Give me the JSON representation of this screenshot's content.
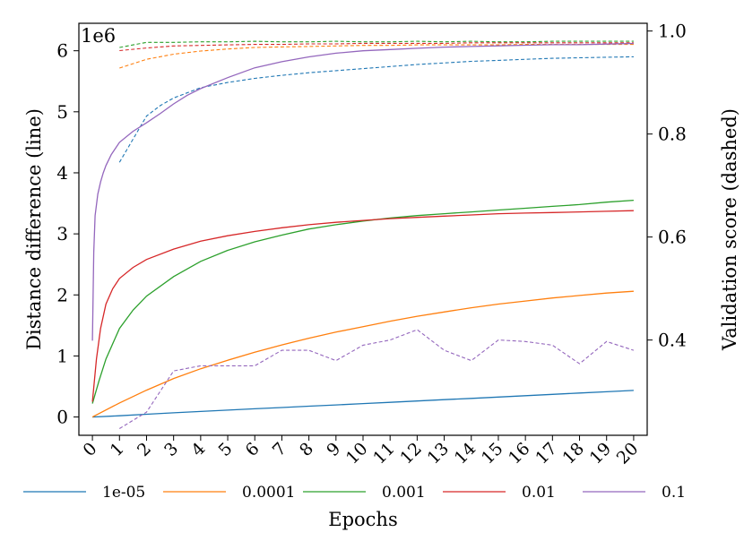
{
  "chart_data": {
    "type": "line",
    "xlabel": "Epochs",
    "ylabel_left": "Distance difference (line)",
    "ylabel_right": "Validation score (dashed)",
    "left_offset_text": "1e6",
    "xlim": [
      -0.5,
      20.5
    ],
    "ylim_left": [
      -0.3,
      6.45
    ],
    "ylim_right": [
      0.215,
      1.015
    ],
    "x_ticks": [
      0,
      1,
      2,
      3,
      4,
      5,
      6,
      7,
      8,
      9,
      10,
      11,
      12,
      13,
      14,
      15,
      16,
      17,
      18,
      19,
      20
    ],
    "x_tick_labels": [
      "0",
      "1",
      "2",
      "3",
      "4",
      "5",
      "6",
      "7",
      "8",
      "9",
      "10",
      "11",
      "12",
      "13",
      "14",
      "15",
      "16",
      "17",
      "18",
      "19",
      "20"
    ],
    "y_left_ticks": [
      0,
      1,
      2,
      3,
      4,
      5,
      6
    ],
    "y_left_tick_labels": [
      "0",
      "1",
      "2",
      "3",
      "4",
      "5",
      "6"
    ],
    "y_right_ticks": [
      0.4,
      0.6,
      0.8,
      1.0
    ],
    "y_right_tick_labels": [
      "0.4",
      "0.6",
      "0.8",
      "1.0"
    ],
    "legend_position": "bottom",
    "series": [
      {
        "name": "1e-05",
        "color": "#1f77b4",
        "distance_x": [
          0,
          1,
          2,
          3,
          4,
          5,
          6,
          7,
          8,
          9,
          10,
          11,
          12,
          13,
          14,
          15,
          16,
          17,
          18,
          19,
          20
        ],
        "distance": [
          0.0,
          0.02,
          0.045,
          0.068,
          0.09,
          0.112,
          0.134,
          0.155,
          0.177,
          0.198,
          0.22,
          0.24,
          0.262,
          0.284,
          0.305,
          0.327,
          0.348,
          0.37,
          0.392,
          0.413,
          0.435
        ],
        "validation_x": [
          1,
          1.5,
          2,
          2.5,
          3,
          4,
          5,
          6,
          7,
          8,
          9,
          10,
          11,
          12,
          13,
          14,
          15,
          16,
          17,
          18,
          19,
          20
        ],
        "validation": [
          0.745,
          0.79,
          0.835,
          0.855,
          0.87,
          0.89,
          0.9,
          0.908,
          0.914,
          0.919,
          0.923,
          0.927,
          0.931,
          0.935,
          0.938,
          0.941,
          0.943,
          0.945,
          0.947,
          0.948,
          0.949,
          0.95
        ]
      },
      {
        "name": "0.0001",
        "color": "#ff7f0e",
        "distance_x": [
          0,
          1,
          2,
          3,
          4,
          5,
          6,
          7,
          8,
          9,
          10,
          11,
          12,
          13,
          14,
          15,
          16,
          17,
          18,
          19,
          20
        ],
        "distance": [
          0.0,
          0.23,
          0.44,
          0.63,
          0.79,
          0.93,
          1.06,
          1.18,
          1.29,
          1.39,
          1.48,
          1.57,
          1.65,
          1.72,
          1.79,
          1.85,
          1.9,
          1.95,
          1.99,
          2.03,
          2.06
        ],
        "validation_x": [
          1,
          2,
          3,
          4,
          5,
          6,
          7,
          8,
          9,
          10,
          11,
          12,
          13,
          14,
          15,
          16,
          17,
          18,
          19,
          20
        ],
        "validation": [
          0.928,
          0.945,
          0.955,
          0.961,
          0.965,
          0.968,
          0.969,
          0.97,
          0.971,
          0.972,
          0.972,
          0.973,
          0.973,
          0.973,
          0.973,
          0.974,
          0.974,
          0.974,
          0.974,
          0.974
        ]
      },
      {
        "name": "0.001",
        "color": "#2ca02c",
        "distance_x": [
          0,
          0.25,
          0.5,
          1,
          1.5,
          2,
          3,
          4,
          5,
          6,
          7,
          8,
          9,
          10,
          11,
          12,
          13,
          14,
          15,
          16,
          17,
          18,
          19,
          20
        ],
        "distance": [
          0.22,
          0.6,
          0.95,
          1.45,
          1.75,
          1.98,
          2.3,
          2.55,
          2.73,
          2.87,
          2.98,
          3.08,
          3.15,
          3.21,
          3.26,
          3.3,
          3.33,
          3.36,
          3.39,
          3.42,
          3.45,
          3.48,
          3.52,
          3.55
        ],
        "validation_x": [
          1,
          2,
          3,
          4,
          5,
          6,
          7,
          8,
          9,
          10,
          11,
          12,
          13,
          14,
          15,
          16,
          17,
          18,
          19,
          20
        ],
        "validation": [
          0.968,
          0.978,
          0.978,
          0.979,
          0.979,
          0.98,
          0.979,
          0.979,
          0.98,
          0.979,
          0.979,
          0.98,
          0.979,
          0.98,
          0.979,
          0.979,
          0.98,
          0.98,
          0.98,
          0.98
        ]
      },
      {
        "name": "0.01",
        "color": "#d62728",
        "distance_x": [
          0,
          0.15,
          0.3,
          0.5,
          0.75,
          1,
          1.5,
          2,
          3,
          4,
          5,
          6,
          7,
          8,
          9,
          10,
          11,
          12,
          13,
          14,
          15,
          16,
          17,
          18,
          19,
          20
        ],
        "distance": [
          0.25,
          0.95,
          1.45,
          1.85,
          2.1,
          2.27,
          2.45,
          2.58,
          2.75,
          2.88,
          2.97,
          3.04,
          3.1,
          3.15,
          3.19,
          3.22,
          3.25,
          3.27,
          3.29,
          3.31,
          3.33,
          3.34,
          3.35,
          3.36,
          3.37,
          3.38
        ],
        "validation_x": [
          1,
          2,
          3,
          4,
          5,
          6,
          7,
          8,
          9,
          10,
          11,
          12,
          13,
          14,
          15,
          16,
          17,
          18,
          19,
          20
        ],
        "validation": [
          0.962,
          0.967,
          0.971,
          0.972,
          0.973,
          0.974,
          0.974,
          0.975,
          0.975,
          0.976,
          0.976,
          0.976,
          0.976,
          0.977,
          0.977,
          0.977,
          0.977,
          0.977,
          0.977,
          0.977
        ]
      },
      {
        "name": "0.1",
        "color": "#9467bd",
        "distance_x": [
          0,
          0.05,
          0.1,
          0.2,
          0.3,
          0.4,
          0.5,
          0.7,
          1,
          1.5,
          2,
          2.5,
          3,
          3.5,
          4,
          5,
          6,
          7,
          8,
          9,
          10,
          11,
          12,
          13,
          14,
          15,
          16,
          17,
          18,
          19,
          20
        ],
        "distance": [
          1.25,
          2.7,
          3.3,
          3.65,
          3.85,
          4.0,
          4.12,
          4.3,
          4.5,
          4.68,
          4.82,
          4.97,
          5.13,
          5.27,
          5.38,
          5.56,
          5.72,
          5.82,
          5.9,
          5.96,
          6.0,
          6.02,
          6.04,
          6.06,
          6.07,
          6.08,
          6.09,
          6.1,
          6.1,
          6.11,
          6.12
        ],
        "validation_x": [
          1,
          2,
          3,
          4,
          5,
          6,
          7,
          8,
          9,
          10,
          11,
          12,
          13,
          14,
          15,
          16,
          17,
          18,
          19,
          20
        ],
        "validation": [
          0.228,
          0.26,
          0.34,
          0.35,
          0.35,
          0.35,
          0.38,
          0.38,
          0.36,
          0.39,
          0.4,
          0.42,
          0.38,
          0.36,
          0.4,
          0.397,
          0.39,
          0.354,
          0.397,
          0.38
        ]
      }
    ]
  }
}
